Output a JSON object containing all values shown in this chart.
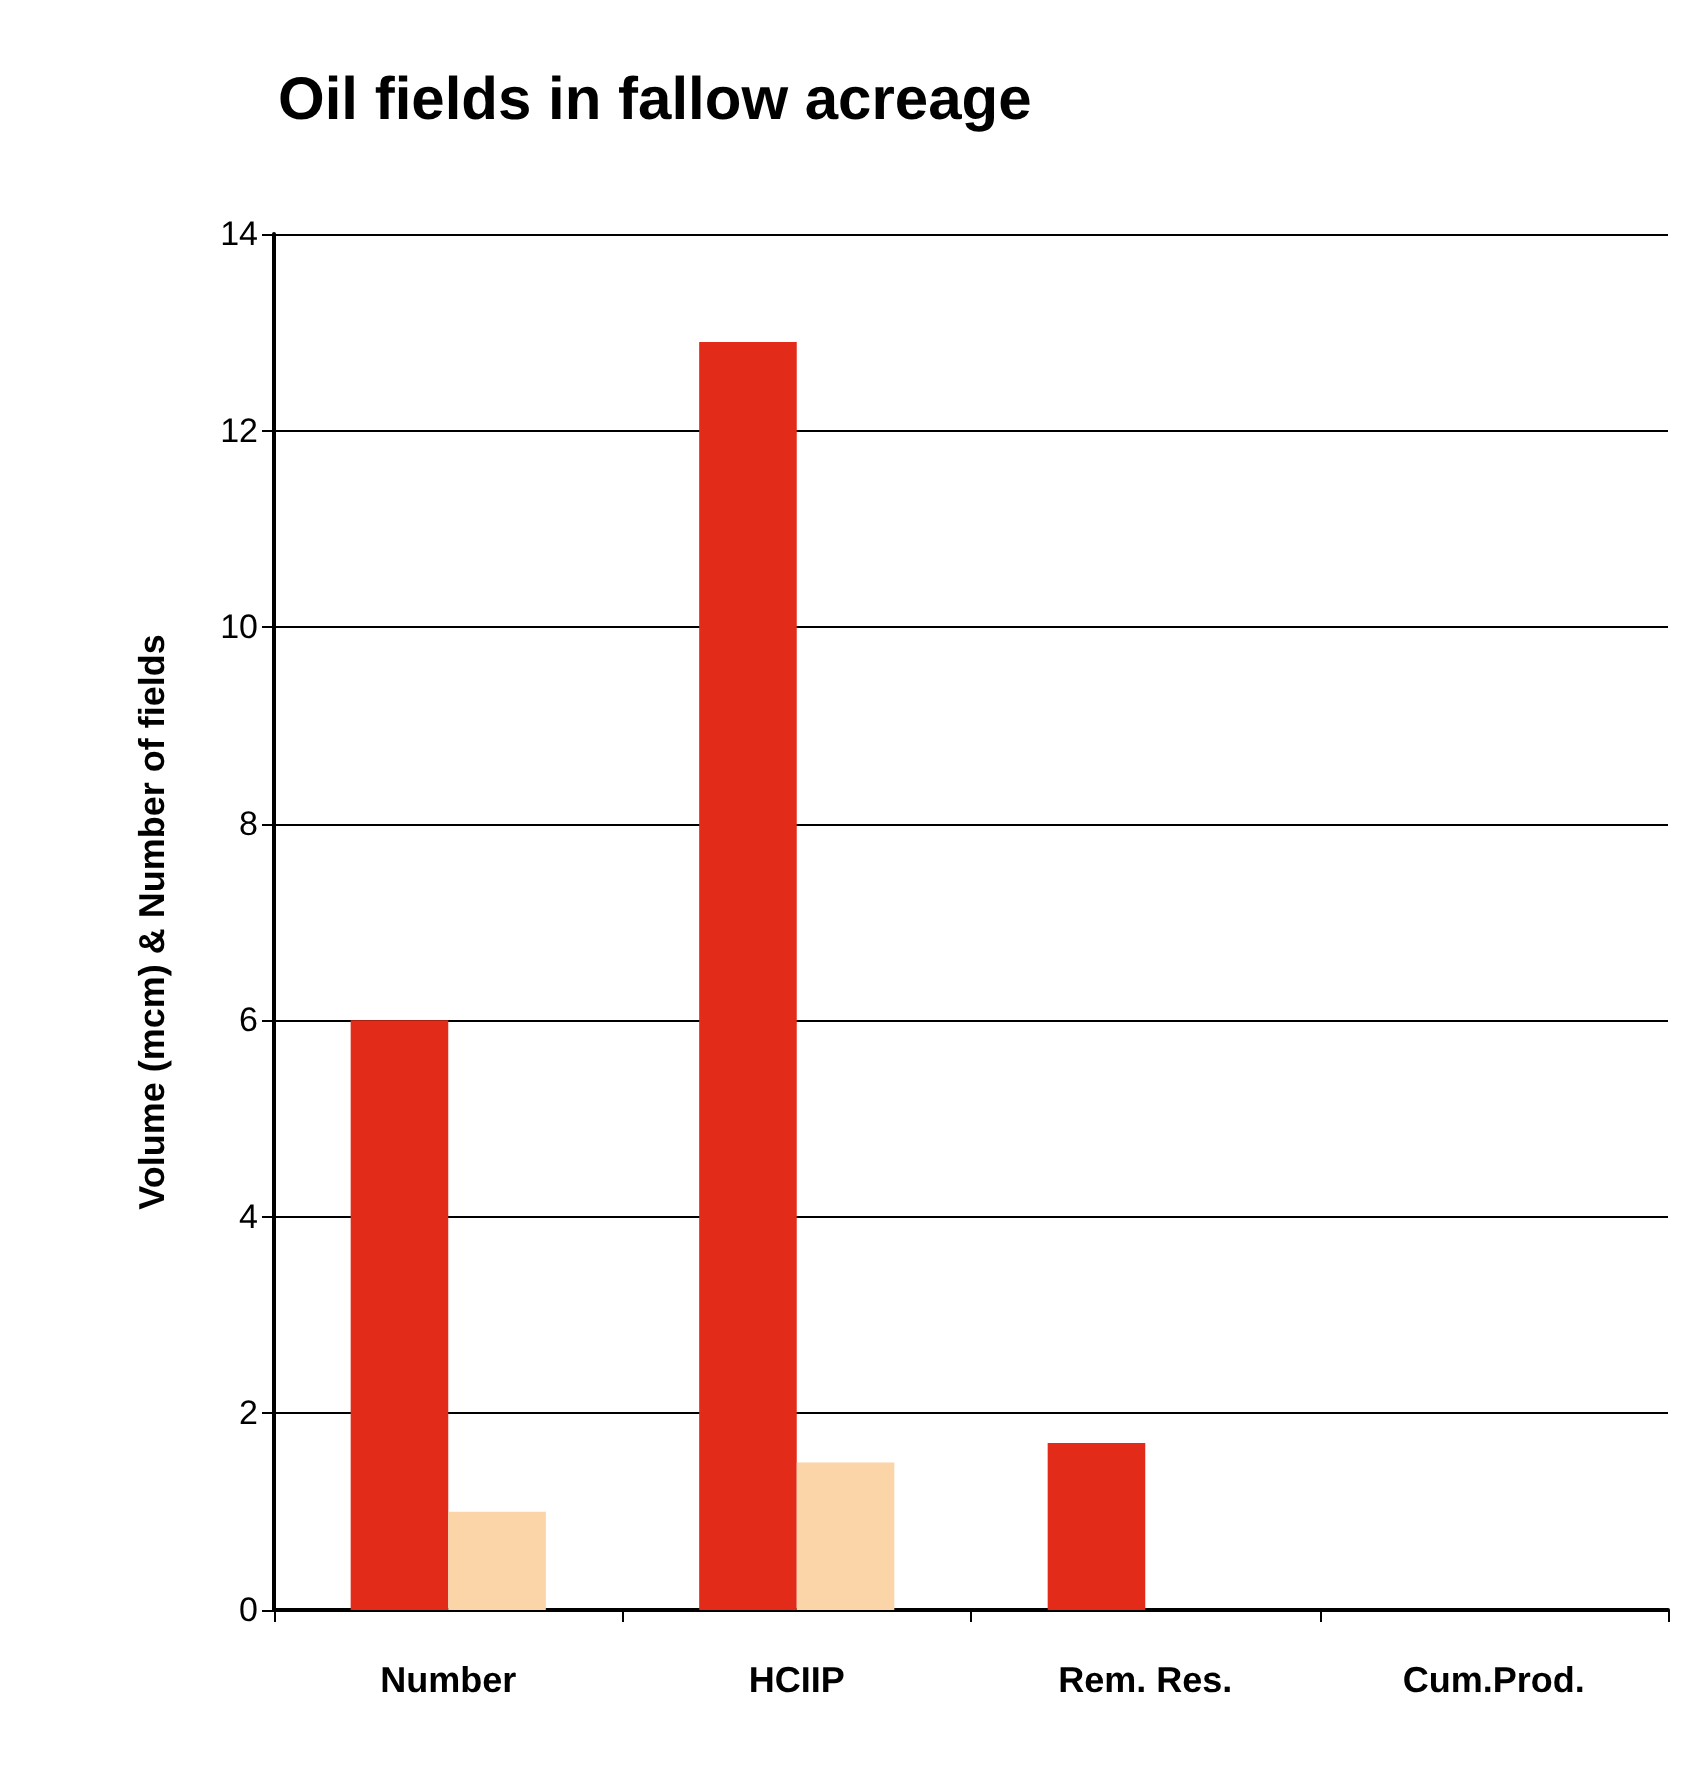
{
  "chart_data": {
    "type": "bar",
    "title": "Oil fields in fallow acreage",
    "ylabel": "Volume (mcm) & Number of fields",
    "categories": [
      "Number",
      "HCIIP",
      "Rem. Res.",
      "Cum.Prod."
    ],
    "series": [
      {
        "color": "#e32b1a",
        "values": [
          6.0,
          12.9,
          1.7,
          0
        ]
      },
      {
        "color": "#fbd4a8",
        "values": [
          1.0,
          1.5,
          0,
          0
        ]
      }
    ],
    "ylim": [
      0,
      14
    ],
    "yticks": [
      0,
      2,
      4,
      6,
      8,
      10,
      12,
      14
    ],
    "grid": "y"
  }
}
